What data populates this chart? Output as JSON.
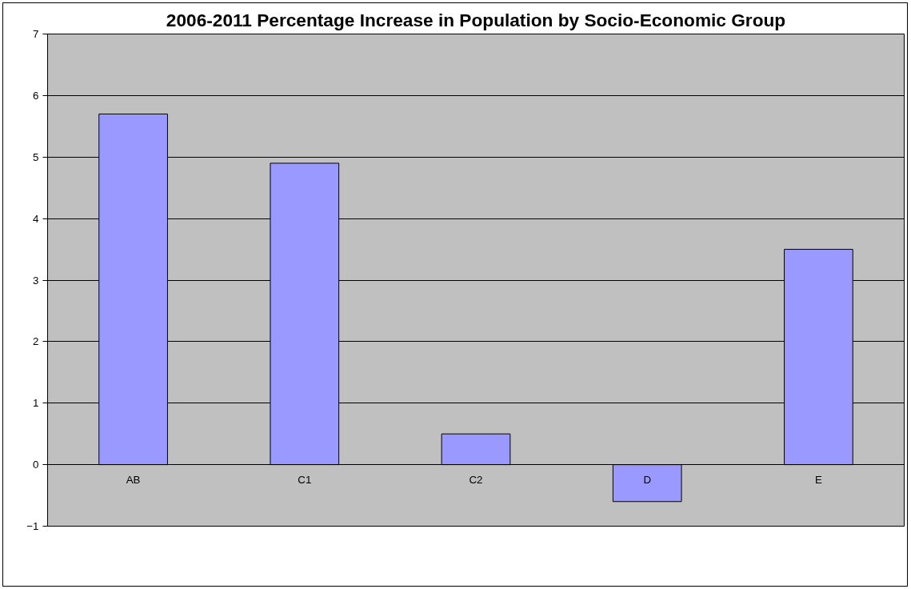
{
  "chart_data": {
    "type": "bar",
    "title": "2006-2011 Percentage Increase in Population by Socio-Economic Group",
    "categories": [
      "AB",
      "C1",
      "C2",
      "D",
      "E"
    ],
    "values": [
      5.7,
      4.9,
      0.5,
      -0.6,
      3.5
    ],
    "color": "#9999ff",
    "ylim": [
      -1,
      7
    ],
    "yticks": [
      -1,
      0,
      1,
      2,
      3,
      4,
      5,
      6,
      7
    ],
    "grid": "y"
  }
}
